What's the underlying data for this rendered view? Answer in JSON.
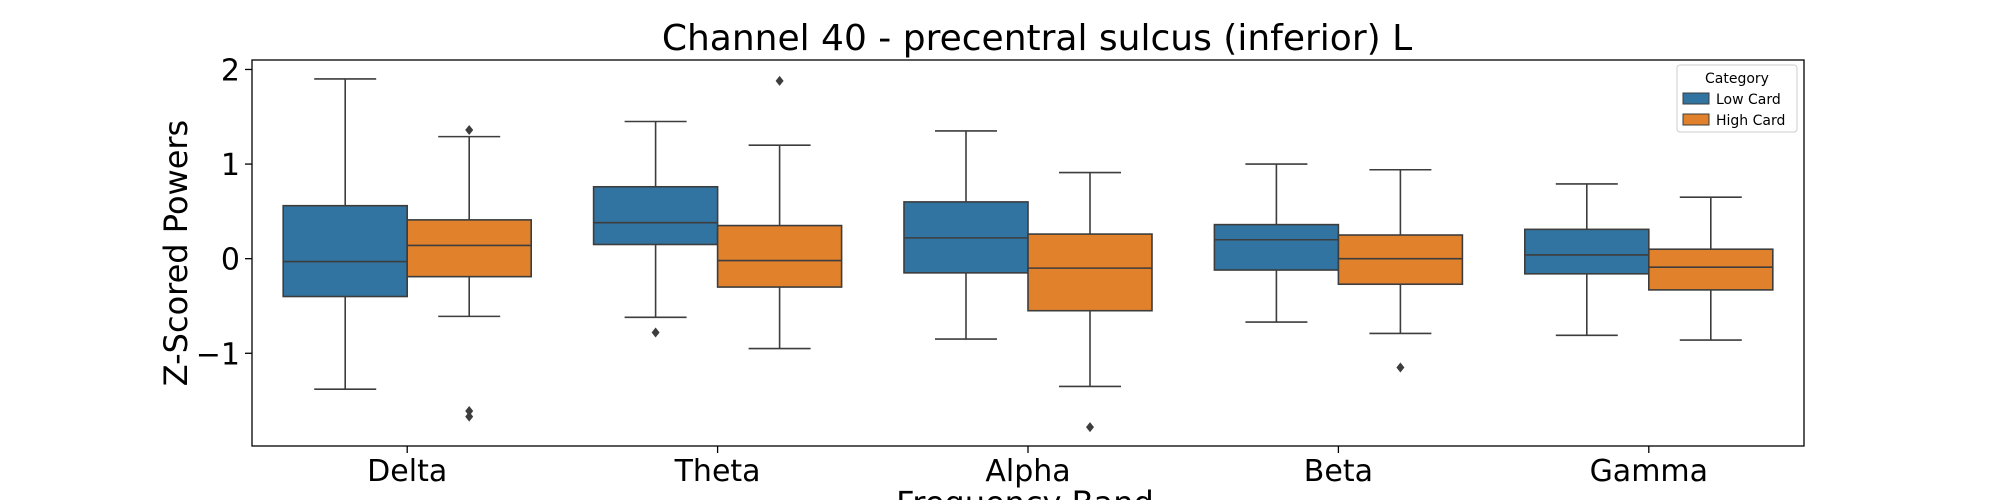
{
  "chart_data": {
    "type": "boxplot",
    "title": "Channel 40 - precentral sulcus (inferior) L",
    "xlabel": "Frequency Band",
    "ylabel": "Z-Scored Powers",
    "ylim": [
      -1.98,
      2.1
    ],
    "yticks": [
      -1,
      0,
      1,
      2
    ],
    "yticklabels": [
      "−1",
      "0",
      "1",
      "2"
    ],
    "categories": [
      "Delta",
      "Theta",
      "Alpha",
      "Beta",
      "Gamma"
    ],
    "legend": {
      "title": "Category",
      "placement": "top-right",
      "entries": [
        "Low Card",
        "High Card"
      ]
    },
    "series": [
      {
        "name": "Low Card",
        "color": "#3274a1",
        "boxes": [
          {
            "whisker_low": -1.38,
            "q1": -0.4,
            "median": -0.03,
            "q3": 0.56,
            "whisker_high": 1.9,
            "outliers": []
          },
          {
            "whisker_low": -0.62,
            "q1": 0.15,
            "median": 0.38,
            "q3": 0.76,
            "whisker_high": 1.45,
            "outliers": [
              -0.78
            ]
          },
          {
            "whisker_low": -0.85,
            "q1": -0.15,
            "median": 0.22,
            "q3": 0.6,
            "whisker_high": 1.35,
            "outliers": []
          },
          {
            "whisker_low": -0.67,
            "q1": -0.12,
            "median": 0.2,
            "q3": 0.36,
            "whisker_high": 1.0,
            "outliers": []
          },
          {
            "whisker_low": -0.81,
            "q1": -0.16,
            "median": 0.04,
            "q3": 0.31,
            "whisker_high": 0.79,
            "outliers": []
          }
        ]
      },
      {
        "name": "High Card",
        "color": "#e1812c",
        "boxes": [
          {
            "whisker_low": -0.61,
            "q1": -0.19,
            "median": 0.14,
            "q3": 0.41,
            "whisker_high": 1.29,
            "outliers": [
              1.36,
              -1.61,
              -1.67
            ]
          },
          {
            "whisker_low": -0.95,
            "q1": -0.3,
            "median": -0.02,
            "q3": 0.35,
            "whisker_high": 1.2,
            "outliers": [
              1.88
            ]
          },
          {
            "whisker_low": -1.35,
            "q1": -0.55,
            "median": -0.1,
            "q3": 0.26,
            "whisker_high": 0.91,
            "outliers": [
              -1.78
            ]
          },
          {
            "whisker_low": -0.79,
            "q1": -0.27,
            "median": 0.0,
            "q3": 0.25,
            "whisker_high": 0.94,
            "outliers": [
              -1.15
            ]
          },
          {
            "whisker_low": -0.86,
            "q1": -0.33,
            "median": -0.09,
            "q3": 0.1,
            "whisker_high": 0.65,
            "outliers": []
          }
        ]
      }
    ]
  }
}
